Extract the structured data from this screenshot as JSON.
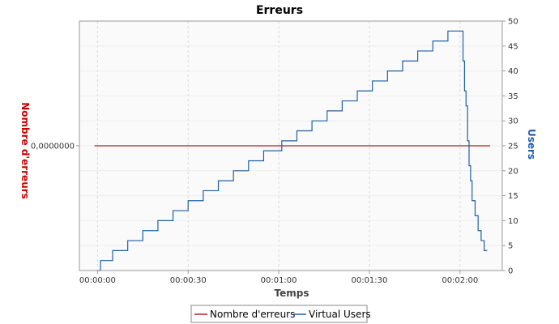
{
  "chart_data": {
    "type": "line",
    "title": "Erreurs",
    "xlabel": "Temps",
    "ylabel_left": "Nombre d'erreurs",
    "ylabel_right": "Users",
    "x_ticks": [
      "00:00:00",
      "00:00:30",
      "00:01:00",
      "00:01:30",
      "00:02:00"
    ],
    "x_tick_seconds": [
      0,
      30,
      60,
      90,
      120
    ],
    "xlim_seconds": [
      -6,
      134
    ],
    "left_axis": {
      "ticks": [
        "0,0000000"
      ],
      "tick_values": [
        0
      ],
      "ylim": [
        -1,
        1
      ]
    },
    "right_axis": {
      "ticks": [
        "0",
        "5",
        "10",
        "15",
        "20",
        "25",
        "30",
        "35",
        "40",
        "45",
        "50"
      ],
      "tick_values": [
        0,
        5,
        10,
        15,
        20,
        25,
        30,
        35,
        40,
        45,
        50
      ],
      "ylim": [
        0,
        50
      ]
    },
    "grid": true,
    "legend_position": "bottom",
    "legend": [
      "Nombre d'erreurs",
      "Virtual Users"
    ],
    "series": [
      {
        "name": "Nombre d'erreurs",
        "axis": "left",
        "color": "#b22222",
        "x_seconds": [
          -1,
          130
        ],
        "values": [
          0,
          0
        ]
      },
      {
        "name": "Virtual Users",
        "axis": "right",
        "color": "#1f5fa8",
        "step": true,
        "x_seconds": [
          0,
          0,
          1,
          5,
          10,
          15,
          20,
          25,
          30,
          35,
          40,
          45,
          50,
          55,
          60,
          61,
          66,
          71,
          76,
          81,
          86,
          91,
          96,
          101,
          106,
          111,
          116,
          120,
          121,
          121.5,
          122,
          122.5,
          123,
          123.5,
          124,
          125,
          126,
          127,
          128,
          129
        ],
        "values": [
          0,
          0,
          2,
          4,
          6,
          8,
          10,
          12,
          14,
          16,
          18,
          20,
          22,
          24,
          24,
          26,
          28,
          30,
          32,
          34,
          36,
          38,
          40,
          42,
          44,
          46,
          48,
          48,
          42,
          36,
          33,
          26,
          21,
          18,
          14,
          11,
          8,
          6,
          4,
          4
        ]
      }
    ]
  }
}
